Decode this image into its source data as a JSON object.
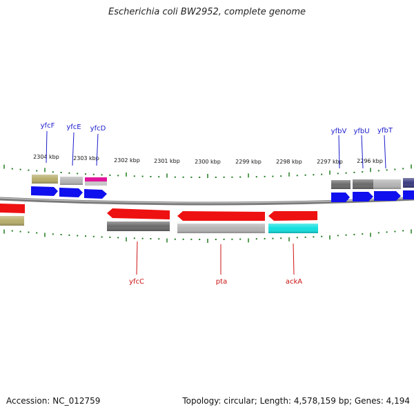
{
  "title": "Escherichia coli BW2952, complete genome",
  "footer": {
    "accession_label": "Accession:",
    "accession": "NC_012759",
    "topology_label": "Topology:",
    "topology": "circular",
    "length_label": "Length:",
    "length": "4,578,159 bp",
    "genes_label": "Genes:",
    "genes": "4,194"
  },
  "colors": {
    "backbone": "#8a8a8a",
    "tick": "#1f7a1f",
    "label_top": "#1a1acc",
    "label_bottom": "#cc1111",
    "cds_forward": "#1010ee",
    "cds_reverse": "#ee1111",
    "cog_khaki": "#b7ad6a",
    "cog_lightgray": "#b4b4b4",
    "cog_magenta": "#e0169a",
    "cog_darkgray": "#6a6a6a",
    "cog_cyan": "#10e0e0",
    "cog_navy": "#3a3a80"
  },
  "ruler_labels": [
    "2304 kbp",
    "2303 kbp",
    "2302 kbp",
    "2301 kbp",
    "2300 kbp",
    "2299 kbp",
    "2298 kbp",
    "2297 kbp",
    "2296 kbp"
  ],
  "top_genes": [
    {
      "name": "yfcF"
    },
    {
      "name": "yfcE"
    },
    {
      "name": "yfcD"
    },
    {
      "name": "yfbV"
    },
    {
      "name": "yfbU"
    },
    {
      "name": "yfbT"
    }
  ],
  "bottom_genes": [
    {
      "name": "yfcC"
    },
    {
      "name": "pta"
    },
    {
      "name": "ackA"
    }
  ]
}
